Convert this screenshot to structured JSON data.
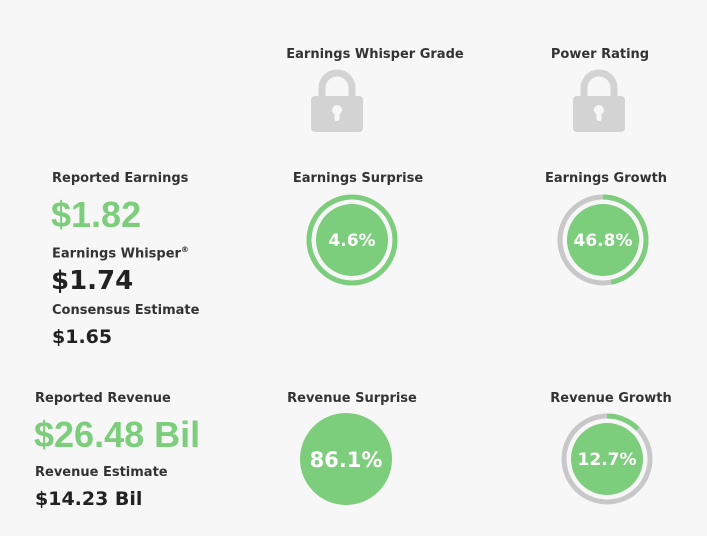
{
  "grades": {
    "whisper_grade_label": "Earnings Whisper Grade",
    "power_rating_label": "Power Rating"
  },
  "earnings": {
    "reported_label": "Reported Earnings",
    "reported_value": "$1.82",
    "whisper_label": "Earnings Whisper",
    "whisper_mark": "®",
    "whisper_value": "$1.74",
    "consensus_label": "Consensus Estimate",
    "consensus_value": "$1.65",
    "surprise_label": "Earnings Surprise",
    "surprise_value": "4.6%",
    "surprise_fraction": 1.0,
    "growth_label": "Earnings Growth",
    "growth_value": "46.8%",
    "growth_fraction": 0.468
  },
  "revenue": {
    "reported_label": "Reported Revenue",
    "reported_value": "$26.48 Bil",
    "estimate_label": "Revenue Estimate",
    "estimate_value": "$14.23 Bil",
    "surprise_label": "Revenue Surprise",
    "surprise_value": "86.1%",
    "surprise_fraction": 1.0,
    "growth_label": "Revenue Growth",
    "growth_value": "12.7%",
    "growth_fraction": 0.127
  },
  "icons": {
    "lock": "lock-icon"
  },
  "colors": {
    "green": "#7ccd7c",
    "track": "#c8c8c8",
    "lock": "#d3d3d3",
    "dark_text": "#222222"
  }
}
